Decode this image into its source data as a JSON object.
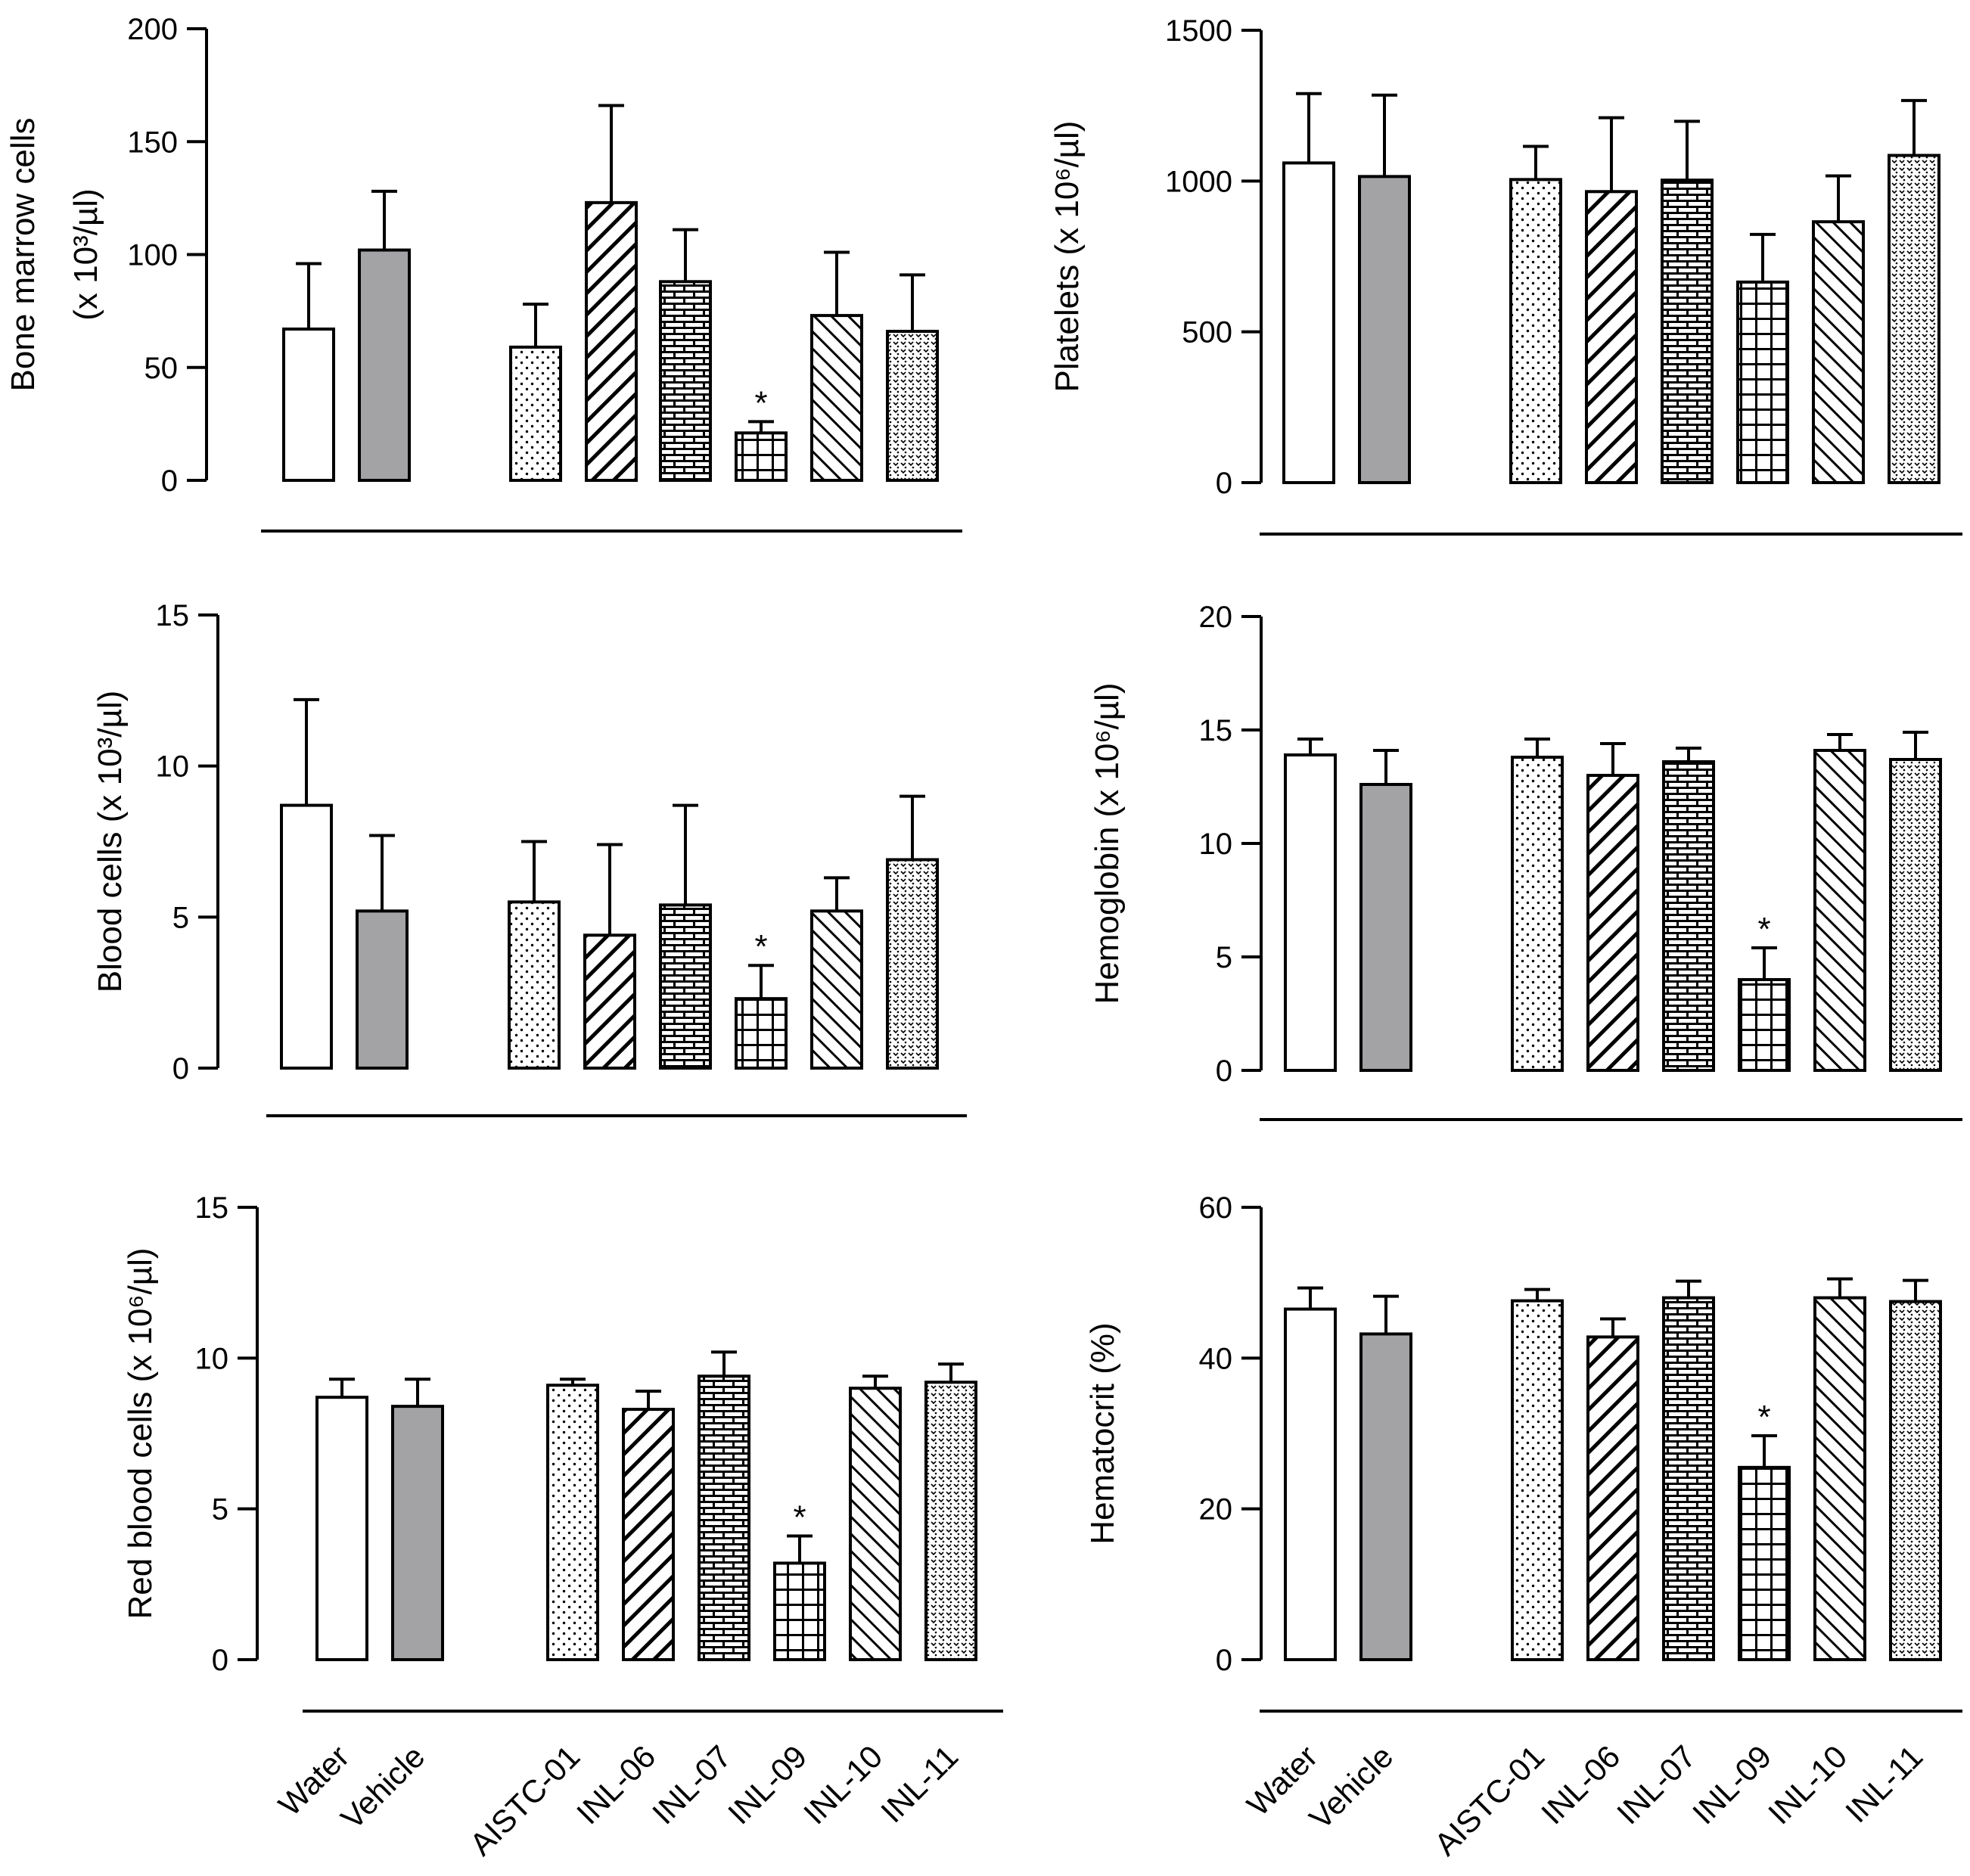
{
  "colors": {
    "ink": "#000000",
    "vehicle_fill": "#a3a3a5",
    "background": "#ffffff"
  },
  "categories": [
    "Water",
    "Vehicle",
    "AISTC-01",
    "INL-06",
    "INL-07",
    "INL-09",
    "INL-10",
    "INL-11"
  ],
  "patterns": [
    "none",
    "solid-gray",
    "dots",
    "diagonal-forward",
    "brick",
    "grid",
    "diagonal-back",
    "dense-dots"
  ],
  "significance_marker": "*",
  "chart_data": [
    {
      "type": "bar",
      "ylabel_lines": [
        "Bone marrow cells",
        "(x 10³/µl)"
      ],
      "ylim": [
        0,
        200
      ],
      "yticks": [
        0,
        50,
        100,
        150,
        200
      ],
      "values": [
        67,
        102,
        59,
        123,
        88,
        21,
        73,
        66
      ],
      "errors": [
        29,
        26,
        19,
        43,
        23,
        5,
        28,
        25
      ],
      "significant": [
        false,
        false,
        false,
        false,
        false,
        true,
        false,
        false
      ]
    },
    {
      "type": "bar",
      "ylabel_lines": [
        "Platelets (x 10⁶/µl)"
      ],
      "ylim": [
        0,
        1500
      ],
      "yticks": [
        0,
        500,
        1000,
        1500
      ],
      "values": [
        1060,
        1015,
        1005,
        965,
        1003,
        665,
        865,
        1085
      ],
      "errors": [
        230,
        270,
        110,
        245,
        195,
        158,
        152,
        182
      ],
      "significant": [
        false,
        false,
        false,
        false,
        false,
        false,
        false,
        false
      ]
    },
    {
      "type": "bar",
      "ylabel_lines": [
        "Blood cells (x 10³/µl)"
      ],
      "ylim": [
        0,
        15
      ],
      "yticks": [
        0,
        5,
        10,
        15
      ],
      "values": [
        8.7,
        5.2,
        5.5,
        4.4,
        5.4,
        2.3,
        5.2,
        6.9
      ],
      "errors": [
        3.5,
        2.5,
        2.0,
        3.0,
        3.3,
        1.1,
        1.1,
        2.1
      ],
      "significant": [
        false,
        false,
        false,
        false,
        false,
        true,
        false,
        false
      ]
    },
    {
      "type": "bar",
      "ylabel_lines": [
        "Hemoglobin (x 10⁶/µl)"
      ],
      "ylim": [
        0,
        20
      ],
      "yticks": [
        0,
        5,
        10,
        15,
        20
      ],
      "values": [
        13.9,
        12.6,
        13.8,
        13.0,
        13.6,
        4.0,
        14.1,
        13.7
      ],
      "errors": [
        0.7,
        1.5,
        0.8,
        1.4,
        0.6,
        1.4,
        0.7,
        1.2
      ],
      "significant": [
        false,
        false,
        false,
        false,
        false,
        true,
        false,
        false
      ]
    },
    {
      "type": "bar",
      "ylabel_lines": [
        "Red blood cells (x 10⁶/µl)"
      ],
      "ylim": [
        0,
        15
      ],
      "yticks": [
        0,
        5,
        10,
        15
      ],
      "values": [
        8.7,
        8.4,
        9.1,
        8.3,
        9.4,
        3.2,
        9.0,
        9.2
      ],
      "errors": [
        0.6,
        0.9,
        0.2,
        0.6,
        0.8,
        0.9,
        0.4,
        0.6
      ],
      "significant": [
        false,
        false,
        false,
        false,
        false,
        true,
        false,
        false
      ]
    },
    {
      "type": "bar",
      "ylabel_lines": [
        "Hematocrit (%)"
      ],
      "ylim": [
        0,
        60
      ],
      "yticks": [
        0,
        20,
        40,
        60
      ],
      "values": [
        46.5,
        43.2,
        47.6,
        42.8,
        48.0,
        25.5,
        48.0,
        47.5
      ],
      "errors": [
        2.8,
        5.0,
        1.5,
        2.4,
        2.2,
        4.2,
        2.5,
        2.8
      ],
      "significant": [
        false,
        false,
        false,
        false,
        false,
        true,
        false,
        false
      ]
    }
  ]
}
